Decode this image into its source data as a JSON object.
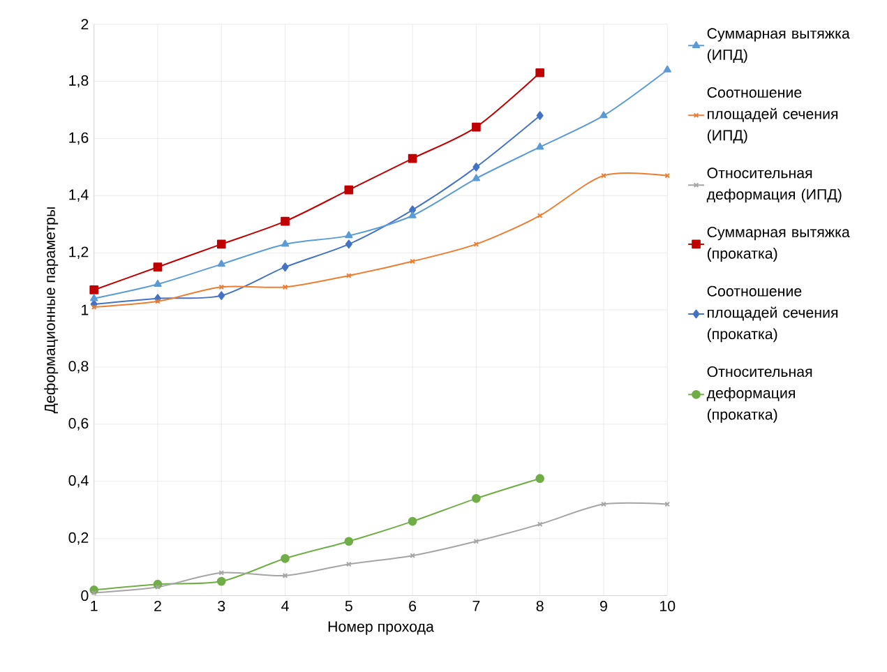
{
  "chart_data": {
    "type": "line",
    "xlabel": "Номер прохода",
    "ylabel": "Деформационные параметры",
    "x": [
      1,
      2,
      3,
      4,
      5,
      6,
      7,
      8,
      9,
      10
    ],
    "xlim": [
      1,
      10
    ],
    "xticks": [
      1,
      2,
      3,
      4,
      5,
      6,
      7,
      8,
      9,
      10
    ],
    "ylim": [
      0,
      2
    ],
    "yticks": [
      0,
      {
        "value": 0.2,
        "label": "0,2"
      },
      {
        "value": 0.4,
        "label": "0,4"
      },
      {
        "value": 0.6,
        "label": "0,6"
      },
      {
        "value": 0.8,
        "label": "0,8"
      },
      1,
      {
        "value": 1.2,
        "label": "1,2"
      },
      {
        "value": 1.4,
        "label": "1,4"
      },
      {
        "value": 1.6,
        "label": "1,6"
      },
      {
        "value": 1.8,
        "label": "1,8"
      },
      2
    ],
    "grid": true,
    "legend": "right",
    "series": [
      {
        "name": "Суммарная вытяжка (ИПД)",
        "color": "#5b9bd5",
        "marker": "triangle",
        "values": [
          1.04,
          1.09,
          1.16,
          1.23,
          1.26,
          1.33,
          1.46,
          1.57,
          1.68,
          1.84
        ]
      },
      {
        "name": "Соотношение площадей сечения (ИПД)",
        "color": "#ed7d31",
        "marker": "cross",
        "values": [
          1.01,
          1.03,
          1.08,
          1.08,
          1.12,
          1.17,
          1.23,
          1.33,
          1.47,
          1.47
        ]
      },
      {
        "name": "Относительная деформация (ИПД)",
        "color": "#a5a5a5",
        "marker": "cross",
        "values": [
          0.01,
          0.03,
          0.08,
          0.07,
          0.11,
          0.14,
          0.19,
          0.25,
          0.32,
          0.32
        ]
      },
      {
        "name": "Суммарная вытяжка (прокатка)",
        "color": "#c00000",
        "marker": "square",
        "values": [
          1.07,
          1.15,
          1.23,
          1.31,
          1.42,
          1.53,
          1.64,
          1.83,
          null,
          null
        ]
      },
      {
        "name": "Соотношение площадей сечения (прокатка)",
        "color": "#4472c4",
        "marker": "diamond",
        "values": [
          1.02,
          1.04,
          1.05,
          1.15,
          1.23,
          1.35,
          1.5,
          1.68,
          null,
          null
        ]
      },
      {
        "name": "Относительная деформация (прокатка)",
        "color": "#70ad47",
        "marker": "circle",
        "values": [
          0.02,
          0.04,
          0.05,
          0.13,
          0.19,
          0.26,
          0.34,
          0.41,
          null,
          null
        ]
      }
    ]
  }
}
